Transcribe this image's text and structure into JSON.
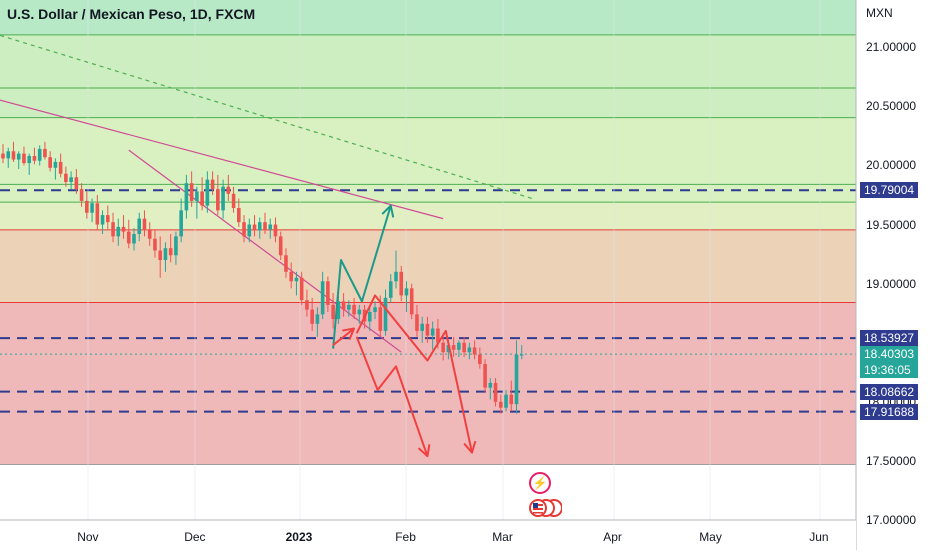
{
  "header": {
    "title": "U.S. Dollar / Mexican Peso, 1D, FXCM",
    "unit": "MXN"
  },
  "colors": {
    "candle_up": "#26a69a",
    "candle_down": "#ef5350",
    "zone_green_dark": "#b7e9c7",
    "zone_green": "#cdeec0",
    "zone_yellowgreen": "#e1efc2",
    "zone_orange": "#ecd3b8",
    "zone_red": "#f0b9b9",
    "line_green": "#4caf50",
    "line_red": "#e53935",
    "trend_pink": "#d04a95",
    "dash_navy": "#2e3b8f",
    "arrow_teal": "#1b9a8a",
    "arrow_red": "#f04040"
  },
  "chart_data": {
    "type": "candlestick",
    "title": "U.S. Dollar / Mexican Peso, 1D, FXCM",
    "ylabel": "MXN",
    "ylim": [
      17.0,
      21.4
    ],
    "y_ticks": [
      "21.00000",
      "20.50000",
      "20.00000",
      "19.50000",
      "19.00000",
      "18.50000",
      "18.00000",
      "17.50000",
      "17.00000"
    ],
    "x_ticks": [
      "Nov",
      "Dec",
      "2023",
      "Feb",
      "Mar",
      "Apr",
      "May",
      "Jun"
    ],
    "price_badges": [
      {
        "label": "19.79004",
        "value": 19.79004,
        "color": "#2e3b8f"
      },
      {
        "label": "18.53927",
        "value": 18.53927,
        "color": "#2e3b8f"
      },
      {
        "label": "18.40303",
        "value": 18.40303,
        "color": "#26a69a",
        "sub": "19:36:05"
      },
      {
        "label": "18.08662",
        "value": 18.08662,
        "color": "#2e3b8f"
      },
      {
        "label": "17.91688",
        "value": 17.91688,
        "color": "#2e3b8f"
      }
    ],
    "horizontal_levels": [
      {
        "value": 21.105,
        "style": "solid",
        "color": "#4caf50"
      },
      {
        "value": 20.655,
        "style": "solid",
        "color": "#4caf50"
      },
      {
        "value": 20.405,
        "style": "solid",
        "color": "#4caf50"
      },
      {
        "value": 19.84,
        "style": "solid",
        "color": "#4caf50"
      },
      {
        "value": 19.69,
        "style": "solid",
        "color": "#4caf50"
      },
      {
        "value": 19.455,
        "style": "solid",
        "color": "#e53935"
      },
      {
        "value": 18.84,
        "style": "solid",
        "color": "#e53935"
      },
      {
        "value": 17.47,
        "style": "solid",
        "color": "#9e9e9e"
      },
      {
        "value": 19.79004,
        "style": "dashed",
        "color": "#2e3b8f"
      },
      {
        "value": 18.53927,
        "style": "dashed",
        "color": "#2e3b8f"
      },
      {
        "value": 18.08662,
        "style": "dashed",
        "color": "#2e3b8f"
      },
      {
        "value": 17.91688,
        "style": "dashed",
        "color": "#2e3b8f"
      },
      {
        "value": 18.40303,
        "style": "dotted",
        "color": "#26a69a"
      }
    ],
    "zones": [
      {
        "from": 21.105,
        "to": 21.4,
        "color": "#b7e9c7"
      },
      {
        "from": 20.405,
        "to": 21.105,
        "color": "#cdeec0"
      },
      {
        "from": 19.69,
        "to": 20.405,
        "color": "#d9f0c0"
      },
      {
        "from": 19.455,
        "to": 19.69,
        "color": "#e1efc2"
      },
      {
        "from": 18.84,
        "to": 19.455,
        "color": "#ecd3b8"
      },
      {
        "from": 17.47,
        "to": 18.84,
        "color": "#f0b9b9"
      }
    ],
    "candles": [
      [
        20.1,
        20.18,
        20.02,
        20.06
      ],
      [
        20.06,
        20.15,
        19.98,
        20.12
      ],
      [
        20.12,
        20.2,
        20.03,
        20.05
      ],
      [
        20.05,
        20.12,
        19.97,
        20.1
      ],
      [
        20.1,
        20.16,
        20.0,
        20.02
      ],
      [
        20.02,
        20.1,
        19.92,
        20.08
      ],
      [
        20.08,
        20.15,
        20.01,
        20.04
      ],
      [
        20.04,
        20.17,
        20.0,
        20.14
      ],
      [
        20.14,
        20.2,
        20.05,
        20.07
      ],
      [
        20.07,
        20.12,
        19.95,
        19.98
      ],
      [
        19.98,
        20.06,
        19.88,
        20.03
      ],
      [
        20.03,
        20.1,
        19.9,
        19.93
      ],
      [
        19.93,
        19.99,
        19.82,
        19.86
      ],
      [
        19.86,
        19.95,
        19.8,
        19.9
      ],
      [
        19.9,
        19.97,
        19.76,
        19.8
      ],
      [
        19.8,
        19.85,
        19.65,
        19.7
      ],
      [
        19.7,
        19.78,
        19.55,
        19.6
      ],
      [
        19.6,
        19.72,
        19.52,
        19.68
      ],
      [
        19.68,
        19.75,
        19.45,
        19.5
      ],
      [
        19.5,
        19.62,
        19.42,
        19.58
      ],
      [
        19.58,
        19.66,
        19.46,
        19.52
      ],
      [
        19.52,
        19.6,
        19.35,
        19.4
      ],
      [
        19.4,
        19.55,
        19.32,
        19.48
      ],
      [
        19.48,
        19.58,
        19.38,
        19.44
      ],
      [
        19.44,
        19.54,
        19.3,
        19.34
      ],
      [
        19.34,
        19.47,
        19.28,
        19.42
      ],
      [
        19.42,
        19.6,
        19.36,
        19.55
      ],
      [
        19.55,
        19.62,
        19.4,
        19.46
      ],
      [
        19.46,
        19.52,
        19.32,
        19.38
      ],
      [
        19.38,
        19.46,
        19.22,
        19.28
      ],
      [
        19.28,
        19.4,
        19.05,
        19.2
      ],
      [
        19.2,
        19.35,
        19.1,
        19.3
      ],
      [
        19.3,
        19.42,
        19.18,
        19.24
      ],
      [
        19.24,
        19.44,
        19.16,
        19.4
      ],
      [
        19.4,
        19.72,
        19.35,
        19.62
      ],
      [
        19.62,
        19.92,
        19.55,
        19.85
      ],
      [
        19.85,
        19.95,
        19.65,
        19.7
      ],
      [
        19.7,
        19.82,
        19.55,
        19.78
      ],
      [
        19.78,
        19.9,
        19.62,
        19.66
      ],
      [
        19.66,
        19.95,
        19.6,
        19.88
      ],
      [
        19.88,
        19.95,
        19.75,
        19.8
      ],
      [
        19.8,
        19.92,
        19.58,
        19.62
      ],
      [
        19.62,
        19.88,
        19.55,
        19.82
      ],
      [
        19.82,
        19.92,
        19.7,
        19.76
      ],
      [
        19.76,
        19.82,
        19.6,
        19.64
      ],
      [
        19.64,
        19.72,
        19.48,
        19.52
      ],
      [
        19.52,
        19.58,
        19.35,
        19.4
      ],
      [
        19.4,
        19.55,
        19.35,
        19.5
      ],
      [
        19.5,
        19.58,
        19.4,
        19.45
      ],
      [
        19.45,
        19.56,
        19.38,
        19.52
      ],
      [
        19.52,
        19.6,
        19.42,
        19.46
      ],
      [
        19.46,
        19.55,
        19.38,
        19.5
      ],
      [
        19.5,
        19.56,
        19.35,
        19.4
      ],
      [
        19.4,
        19.44,
        19.2,
        19.24
      ],
      [
        19.24,
        19.3,
        19.05,
        19.1
      ],
      [
        19.1,
        19.18,
        18.96,
        19.02
      ],
      [
        19.02,
        19.1,
        18.9,
        19.05
      ],
      [
        19.05,
        19.1,
        18.82,
        18.86
      ],
      [
        18.86,
        18.95,
        18.72,
        18.78
      ],
      [
        18.78,
        18.88,
        18.6,
        18.66
      ],
      [
        18.66,
        18.8,
        18.55,
        18.74
      ],
      [
        18.74,
        19.1,
        18.7,
        19.02
      ],
      [
        19.02,
        19.06,
        18.76,
        18.82
      ],
      [
        18.82,
        18.92,
        18.62,
        18.7
      ],
      [
        18.7,
        18.9,
        18.66,
        18.85
      ],
      [
        18.85,
        18.92,
        18.72,
        18.78
      ],
      [
        18.78,
        18.86,
        18.72,
        18.82
      ],
      [
        18.82,
        18.88,
        18.7,
        18.74
      ],
      [
        18.74,
        18.82,
        18.66,
        18.78
      ],
      [
        18.78,
        18.82,
        18.62,
        18.68
      ],
      [
        18.68,
        18.8,
        18.6,
        18.76
      ],
      [
        18.76,
        18.85,
        18.7,
        18.8
      ],
      [
        18.8,
        18.9,
        18.55,
        18.6
      ],
      [
        18.6,
        18.95,
        18.56,
        18.88
      ],
      [
        18.88,
        19.08,
        18.84,
        19.02
      ],
      [
        19.02,
        19.28,
        18.96,
        19.1
      ],
      [
        19.1,
        19.15,
        18.85,
        18.9
      ],
      [
        18.9,
        19.02,
        18.76,
        18.96
      ],
      [
        18.96,
        19.0,
        18.7,
        18.74
      ],
      [
        18.74,
        18.82,
        18.55,
        18.6
      ],
      [
        18.6,
        18.72,
        18.5,
        18.66
      ],
      [
        18.66,
        18.72,
        18.5,
        18.56
      ],
      [
        18.56,
        18.68,
        18.44,
        18.62
      ],
      [
        18.62,
        18.7,
        18.45,
        18.5
      ],
      [
        18.5,
        18.58,
        18.35,
        18.42
      ],
      [
        18.42,
        18.52,
        18.36,
        18.48
      ],
      [
        18.48,
        18.55,
        18.38,
        18.44
      ],
      [
        18.44,
        18.52,
        18.38,
        18.5
      ],
      [
        18.5,
        18.55,
        18.38,
        18.42
      ],
      [
        18.42,
        18.5,
        18.36,
        18.46
      ],
      [
        18.46,
        18.52,
        18.36,
        18.4
      ],
      [
        18.4,
        18.46,
        18.28,
        18.32
      ],
      [
        18.32,
        18.36,
        18.08,
        18.12
      ],
      [
        18.12,
        18.2,
        18.02,
        18.16
      ],
      [
        18.16,
        18.2,
        17.96,
        18.0
      ],
      [
        18.0,
        18.06,
        17.9,
        17.95
      ],
      [
        17.95,
        18.1,
        17.92,
        18.06
      ],
      [
        18.06,
        18.18,
        17.92,
        17.98
      ],
      [
        17.98,
        18.52,
        17.9,
        18.4
      ],
      [
        18.4,
        18.48,
        18.36,
        18.4
      ]
    ],
    "trendlines": [
      {
        "points": [
          [
            -2,
            20.57
          ],
          [
            84,
            19.55
          ]
        ],
        "color": "#d04a95",
        "style": "solid"
      },
      {
        "points": [
          [
            24,
            20.13
          ],
          [
            76,
            18.42
          ]
        ],
        "color": "#d04a95",
        "style": "solid"
      },
      {
        "points": [
          [
            -2,
            21.12
          ],
          [
            101,
            19.72
          ]
        ],
        "color": "#4caf50",
        "style": "dotted"
      }
    ],
    "projection_paths": [
      {
        "color": "#1b9a8a",
        "points": [
          [
            63,
            18.45
          ],
          [
            64.5,
            19.2
          ],
          [
            68.5,
            18.85
          ],
          [
            74,
            19.66
          ]
        ]
      },
      {
        "color": "#f04040",
        "points": [
          [
            63,
            18.48
          ],
          [
            67,
            18.62
          ]
        ]
      },
      {
        "color": "#f04040",
        "points": [
          [
            67.5,
            18.58
          ],
          [
            71,
            18.9
          ],
          [
            81,
            18.35
          ],
          [
            84.5,
            18.6
          ],
          [
            89.5,
            17.57
          ]
        ]
      },
      {
        "color": "#f04040",
        "points": [
          [
            67.5,
            18.55
          ],
          [
            71.5,
            18.1
          ],
          [
            75,
            18.3
          ],
          [
            81,
            17.54
          ]
        ]
      }
    ]
  }
}
